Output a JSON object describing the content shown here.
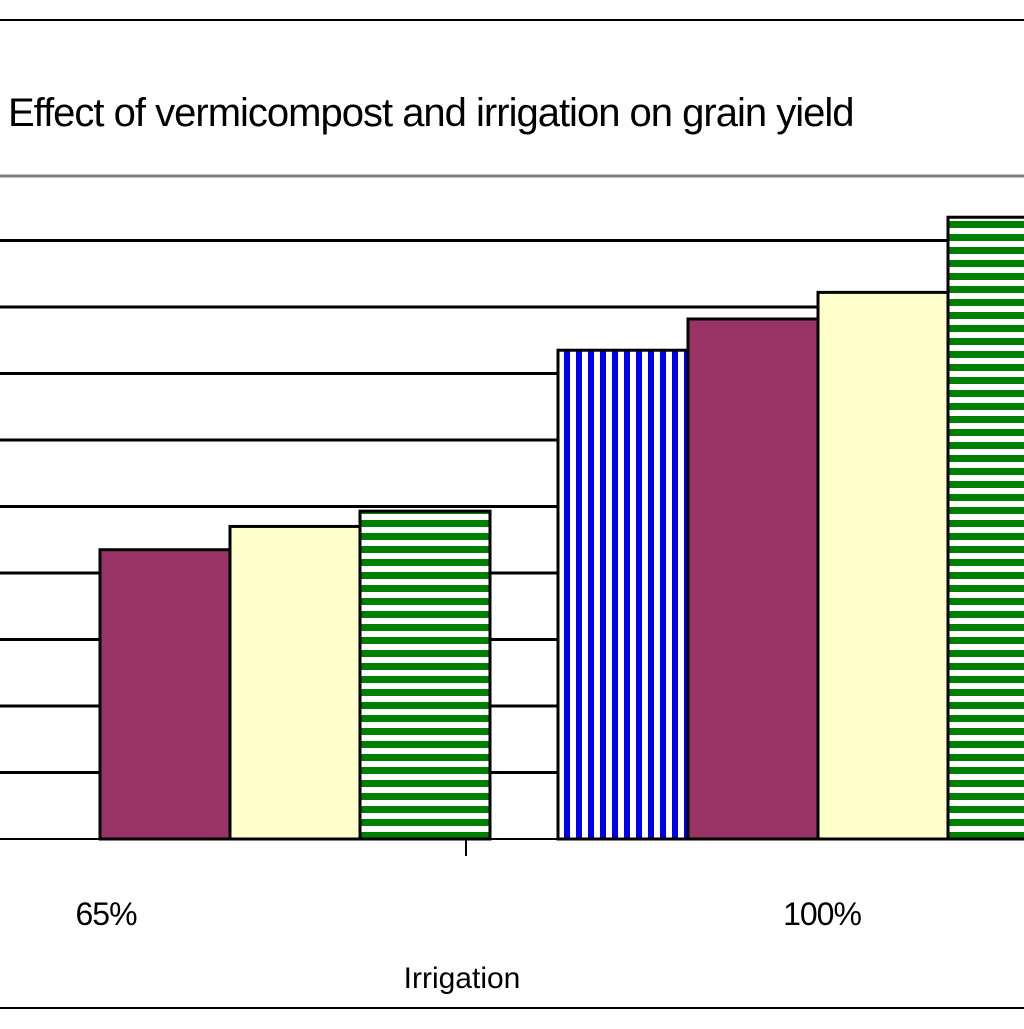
{
  "chart_data": {
    "type": "bar",
    "title": "Effect of vermicompost and irrigation on grain yield",
    "xlabel": "Irrigation",
    "ylabel": "",
    "categories": [
      "65%",
      "100%"
    ],
    "ylim": [
      0,
      9
    ],
    "grid": true,
    "series": [
      {
        "fill": "#0000ee",
        "pattern": "vertical-stripes",
        "values": [
          null,
          7.35
        ]
      },
      {
        "fill": "#993366",
        "pattern": "solid",
        "values": [
          4.35,
          7.82
        ]
      },
      {
        "fill": "#ffffcc",
        "pattern": "solid",
        "values": [
          4.7,
          8.22
        ]
      },
      {
        "fill": "#008000",
        "pattern": "horizontal-stripes",
        "values": [
          4.93,
          9.35
        ]
      }
    ],
    "colors": {
      "grid": "#000000",
      "frame": "#808080",
      "bar_outline": "#000000"
    }
  }
}
